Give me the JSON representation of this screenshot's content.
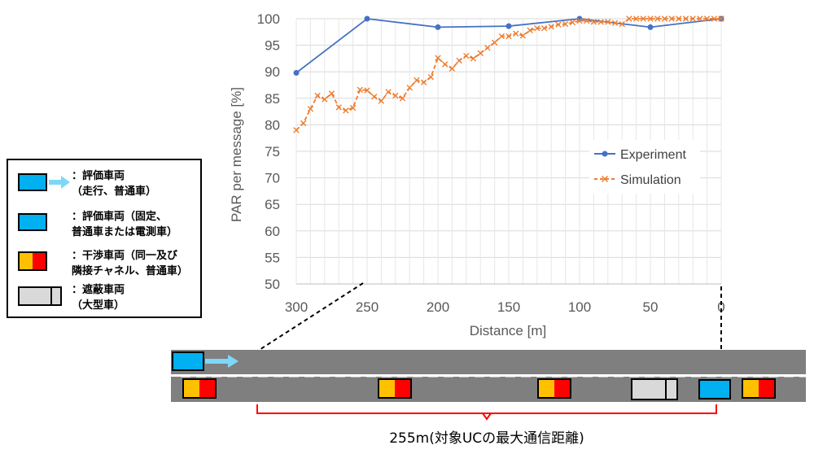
{
  "chart_data": {
    "type": "line",
    "xlabel": "Distance [m]",
    "ylabel": "PAR per message [%]",
    "xlim": [
      300,
      0
    ],
    "ylim": [
      50,
      100
    ],
    "xticks": [
      300,
      250,
      200,
      150,
      100,
      50,
      0
    ],
    "xtick_labels": [
      "300",
      "250",
      "200",
      "150",
      "100",
      "50",
      "0"
    ],
    "yticks": [
      50,
      55,
      60,
      65,
      70,
      75,
      80,
      85,
      90,
      95,
      100
    ],
    "ytick_labels": [
      "50",
      "55",
      "60",
      "65",
      "70",
      "75",
      "80",
      "85",
      "90",
      "95",
      "100"
    ],
    "grid": true,
    "legend_position": "right-middle",
    "series": [
      {
        "name": "Experiment",
        "color": "#4472C4",
        "marker": "circle",
        "x": [
          300,
          250,
          200,
          150,
          100,
          50,
          0
        ],
        "y": [
          89.8,
          100,
          98.4,
          98.6,
          100,
          98.4,
          100
        ]
      },
      {
        "name": "Simulation",
        "color": "#ED7D31",
        "marker": "x",
        "dashed": true,
        "x": [
          300,
          295,
          290,
          285,
          280,
          275,
          270,
          265,
          260,
          255,
          250,
          245,
          240,
          235,
          230,
          225,
          220,
          215,
          210,
          205,
          200,
          195,
          190,
          185,
          180,
          175,
          170,
          165,
          160,
          155,
          150,
          145,
          140,
          135,
          130,
          125,
          120,
          115,
          110,
          105,
          100,
          95,
          90,
          85,
          80,
          75,
          70,
          65,
          60,
          55,
          50,
          45,
          40,
          35,
          30,
          25,
          20,
          15,
          10,
          5,
          0
        ],
        "y": [
          79,
          80.3,
          83,
          85.5,
          84.8,
          85.9,
          83.3,
          82.7,
          83.2,
          86.6,
          86.5,
          85.3,
          84.5,
          86.2,
          85.5,
          85,
          87,
          88.4,
          88,
          89,
          92.6,
          91.4,
          90.6,
          92.1,
          93,
          92.5,
          93.5,
          94.5,
          95.5,
          96.7,
          96.7,
          97.2,
          96.8,
          97.8,
          98.2,
          98.2,
          98.5,
          98.9,
          99,
          99.3,
          99.6,
          99.6,
          99.4,
          99.4,
          99.4,
          99.2,
          99,
          100,
          100,
          100,
          100,
          100,
          100,
          100,
          100,
          100,
          100,
          100,
          100,
          100,
          100
        ]
      }
    ]
  },
  "legend_chart": {
    "experiment_label": "Experiment",
    "simulation_label": "Simulation"
  },
  "vehicle_legend": {
    "items": [
      {
        "lines": [
          "：評価車両",
          "（走行、普通車）"
        ]
      },
      {
        "lines": [
          "：評価車両（固定、",
          "普通車または電測車）"
        ]
      },
      {
        "lines": [
          "：干渉車両（同一及び",
          "隣接チャネル、普通車）"
        ]
      },
      {
        "lines": [
          "：遮蔽車両",
          "（大型車）"
        ]
      }
    ]
  },
  "road": {
    "distance_caption": "255m(対象UCの最大通信距離)"
  },
  "colors": {
    "road": "#7f7f7f",
    "eval_vehicle": "#00b0f0",
    "interference_left": "#ffc000",
    "interference_right": "#ff0000",
    "shield_vehicle": "#d9d9d9",
    "arrow": "#7fd7f7",
    "bracket": "#ff0000"
  }
}
